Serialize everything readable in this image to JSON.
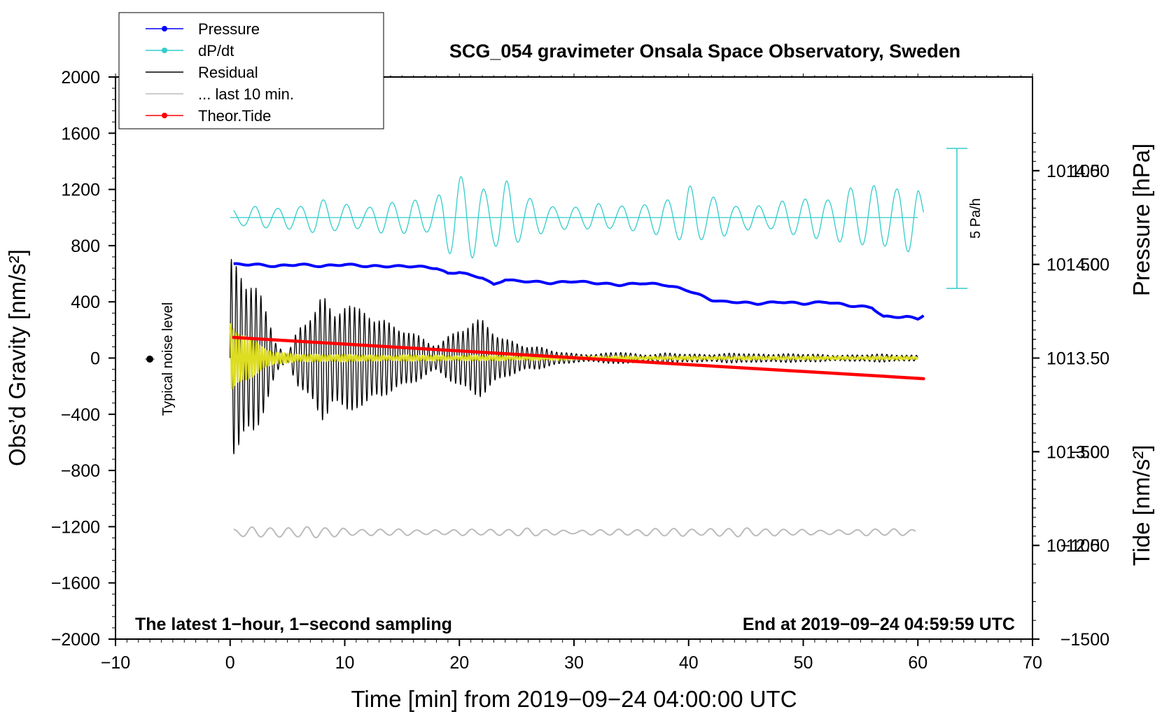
{
  "chart_data": {
    "type": "line",
    "title": "SCG_054 gravimeter Onsala Space Observatory, Sweden",
    "xlabel": "Time [min] from 2019−09−24 04:00:00 UTC",
    "ylabel_left": "Obs’d Gravity [nm/s²]",
    "ylabel_right_top": "Pressure [hPa]",
    "ylabel_right_bottom": "Tide [nm/s²]",
    "xlim": [
      -10,
      70
    ],
    "ylim_left": [
      -2000,
      2000
    ],
    "xticks": [
      "−10",
      "0",
      "10",
      "20",
      "30",
      "40",
      "50",
      "60",
      "70"
    ],
    "yticks_left": [
      "2000",
      "1600",
      "1200",
      "800",
      "400",
      "0",
      "−400",
      "−800",
      "−1200",
      "−1600",
      "−2000"
    ],
    "yticks_pressure": [
      "1014.5",
      "1014.0",
      "1013.5",
      "1013.0",
      "1012.5"
    ],
    "yticks_tide": [
      "1000",
      "500",
      "0",
      "−500",
      "−1000",
      "−1500"
    ],
    "note_left": "The latest 1−hour, 1−second sampling",
    "note_right": "End at 2019−09−24 04:59:59 UTC",
    "noise_label": "Typical noise level",
    "scale_bar_label": "5 Pa/h",
    "legend": [
      {
        "label": "Pressure",
        "color": "#0000ff",
        "marker": true
      },
      {
        "label": "dP/dt",
        "color": "#33cccc",
        "marker": true
      },
      {
        "label": "Residual",
        "color": "#000000",
        "marker": false
      },
      {
        "label": "... last 10 min.",
        "color": "#bbbbbb",
        "marker": false
      },
      {
        "label": "Theor.Tide",
        "color": "#ff0000",
        "marker": true
      }
    ],
    "series": [
      {
        "name": "Pressure",
        "color": "#0000ff",
        "axis": "pressure",
        "ylim": [
          1012.0,
          1015.0
        ],
        "x": [
          0.3,
          2,
          4,
          6,
          8,
          10,
          12,
          14,
          16,
          18,
          19,
          20,
          21,
          22,
          23,
          24,
          25,
          26,
          28,
          30,
          32,
          34,
          36,
          38,
          40,
          42,
          43,
          44,
          46,
          48,
          50,
          52,
          54,
          56,
          57,
          58,
          59,
          60,
          60.5
        ],
        "y": [
          1014.0,
          1014.0,
          1013.99,
          1014.0,
          1013.99,
          1014.0,
          1013.99,
          1013.99,
          1013.99,
          1013.98,
          1013.95,
          1013.96,
          1013.94,
          1013.93,
          1013.89,
          1013.92,
          1013.91,
          1013.91,
          1013.9,
          1013.91,
          1013.9,
          1013.89,
          1013.9,
          1013.89,
          1013.86,
          1013.81,
          1013.8,
          1013.8,
          1013.79,
          1013.8,
          1013.79,
          1013.8,
          1013.78,
          1013.77,
          1013.72,
          1013.72,
          1013.72,
          1013.71,
          1013.73
        ]
      },
      {
        "name": "dP/dt",
        "color": "#33cccc",
        "axis": "left",
        "baseline": 1000,
        "period_min": 2.0,
        "envelope_x": [
          0,
          4,
          8,
          12,
          18,
          20,
          22,
          24,
          26,
          30,
          34,
          38,
          40,
          42,
          44,
          48,
          52,
          54,
          56,
          58,
          60,
          60.5
        ],
        "envelope_y": [
          70,
          90,
          130,
          100,
          170,
          360,
          280,
          300,
          150,
          90,
          110,
          130,
          280,
          180,
          100,
          120,
          190,
          230,
          240,
          300,
          260,
          100
        ]
      },
      {
        "name": "Residual",
        "color": "#000000",
        "axis": "left",
        "period_min": 0.43,
        "envelope_x": [
          0,
          0.8,
          2,
          3,
          4,
          5,
          6,
          7,
          8,
          9,
          10,
          11,
          12,
          14,
          16,
          18,
          20,
          22,
          24,
          26,
          28,
          30,
          32,
          34,
          36,
          38,
          40,
          44,
          46,
          48,
          52,
          56,
          60
        ],
        "envelope_y": [
          820,
          820,
          700,
          380,
          120,
          20,
          260,
          420,
          520,
          340,
          420,
          380,
          440,
          280,
          180,
          120,
          250,
          280,
          170,
          100,
          60,
          40,
          30,
          50,
          30,
          40,
          30,
          40,
          30,
          40,
          25,
          30,
          25
        ]
      },
      {
        "name": "Residual (yellow)",
        "color": "#dddd22",
        "axis": "left",
        "period_min": 0.25,
        "envelope_x": [
          0,
          0.5,
          1,
          2,
          3,
          4,
          6,
          8,
          10,
          14,
          20,
          30,
          40,
          50,
          60
        ],
        "envelope_y": [
          300,
          260,
          230,
          160,
          90,
          40,
          30,
          30,
          25,
          22,
          20,
          15,
          12,
          12,
          12
        ]
      },
      {
        "name": "... last 10 min.",
        "color": "#bbbbbb",
        "axis": "left",
        "baseline": -1240,
        "period_min": 1.6,
        "envelope_x": [
          0,
          2,
          4,
          6,
          8,
          10,
          14,
          18,
          22,
          26,
          30,
          34,
          38,
          42,
          46,
          50,
          54,
          58,
          60
        ],
        "envelope_y": [
          30,
          40,
          35,
          50,
          40,
          30,
          25,
          20,
          25,
          30,
          15,
          25,
          30,
          30,
          35,
          20,
          20,
          30,
          25
        ]
      },
      {
        "name": "Theor.Tide",
        "color": "#ff0000",
        "axis": "tide",
        "ylim": [
          -1500,
          1500
        ],
        "x": [
          0.3,
          60.5
        ],
        "y": [
          110,
          -110
        ]
      }
    ]
  }
}
